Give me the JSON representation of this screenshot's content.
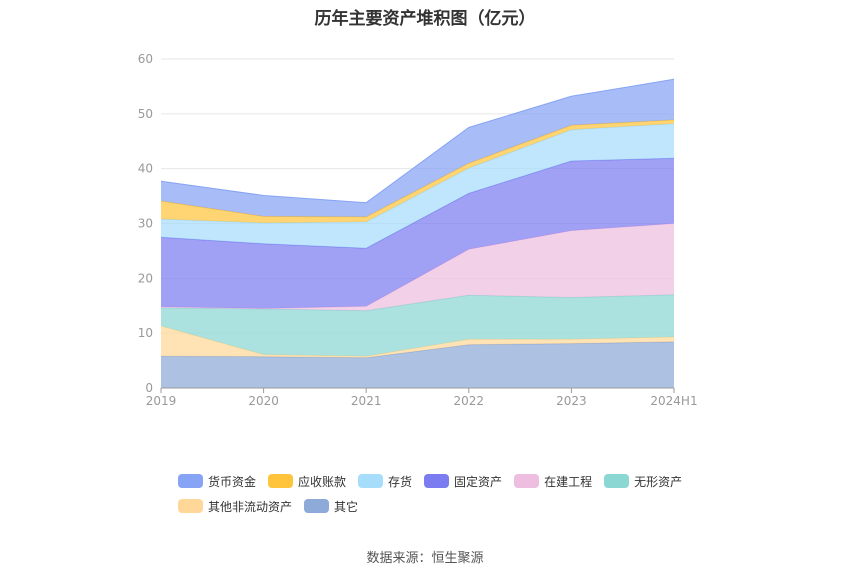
{
  "chart_data": {
    "type": "area",
    "stacked": true,
    "title": "历年主要资产堆积图（亿元）",
    "categories": [
      "2019",
      "2020",
      "2021",
      "2022",
      "2023",
      "2024H1"
    ],
    "ylim": [
      0,
      60
    ],
    "yticks": [
      0,
      10,
      20,
      30,
      40,
      50,
      60
    ],
    "grid": true,
    "legend_position": "bottom",
    "series": [
      {
        "name": "其它",
        "color": "#8eaad8",
        "values": [
          5.8,
          5.7,
          5.5,
          7.9,
          8.1,
          8.4
        ]
      },
      {
        "name": "其他非流动资产",
        "color": "#ffd899",
        "values": [
          5.5,
          0.4,
          0.3,
          1.0,
          0.8,
          0.9
        ]
      },
      {
        "name": "无形资产",
        "color": "#8ad7d4",
        "values": [
          3.3,
          8.3,
          8.3,
          8.0,
          7.6,
          7.7
        ]
      },
      {
        "name": "在建工程",
        "color": "#edbedf",
        "values": [
          0.2,
          0.1,
          0.8,
          8.4,
          12.2,
          13.0
        ]
      },
      {
        "name": "固定资产",
        "color": "#7b7cf0",
        "values": [
          12.7,
          11.8,
          10.6,
          10.2,
          12.7,
          11.9
        ]
      },
      {
        "name": "存货",
        "color": "#a6ddfb",
        "values": [
          3.3,
          3.8,
          4.8,
          4.6,
          5.7,
          6.3
        ]
      },
      {
        "name": "应收账款",
        "color": "#ffc43c",
        "values": [
          3.3,
          1.2,
          0.9,
          0.9,
          0.8,
          0.7
        ]
      },
      {
        "name": "货币资金",
        "color": "#86a3f5",
        "values": [
          3.6,
          3.8,
          2.6,
          6.5,
          5.3,
          7.4
        ]
      }
    ],
    "legend_order": [
      "货币资金",
      "应收账款",
      "存货",
      "固定资产",
      "在建工程",
      "无形资产",
      "其他非流动资产",
      "其它"
    ]
  },
  "source": "数据来源：恒生聚源"
}
